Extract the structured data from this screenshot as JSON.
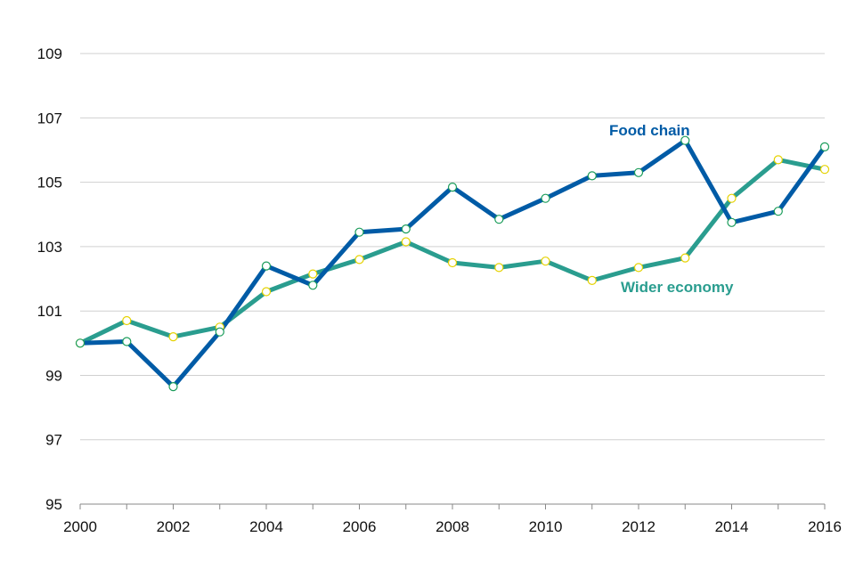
{
  "chart_data": {
    "type": "line",
    "title": "",
    "xlabel": "",
    "ylabel": "",
    "x": [
      2000,
      2001,
      2002,
      2003,
      2004,
      2005,
      2006,
      2007,
      2008,
      2009,
      2010,
      2011,
      2012,
      2013,
      2014,
      2015,
      2016
    ],
    "xlim": [
      2000,
      2016
    ],
    "ylim": [
      95,
      110
    ],
    "x_ticks": [
      "2000",
      "2002",
      "2004",
      "2006",
      "2008",
      "2010",
      "2012",
      "2014",
      "2016"
    ],
    "y_ticks": [
      "95",
      "97",
      "99",
      "101",
      "103",
      "105",
      "107",
      "109"
    ],
    "grid": "horizontal",
    "legend": "inline labels",
    "series": [
      {
        "name": "Food chain",
        "color": "#005BA6",
        "marker_stroke": "#1a9c5a",
        "values": [
          100.0,
          100.05,
          98.65,
          100.35,
          102.4,
          101.8,
          103.45,
          103.55,
          104.85,
          103.85,
          104.5,
          105.2,
          105.3,
          106.3,
          103.75,
          104.1,
          106.1
        ]
      },
      {
        "name": "Wider economy",
        "color": "#2A9D8F",
        "marker_stroke": "#e6d200",
        "values": [
          100.0,
          100.7,
          100.2,
          100.5,
          101.6,
          102.15,
          102.6,
          103.15,
          102.5,
          102.35,
          102.55,
          101.95,
          102.35,
          102.65,
          104.5,
          105.7,
          105.4
        ]
      }
    ]
  }
}
